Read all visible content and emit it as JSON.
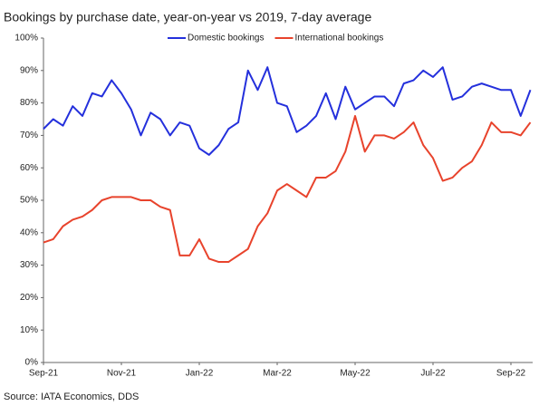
{
  "chart_data": {
    "type": "line",
    "title": "Bookings by purchase date, year-on-year vs 2019, 7-day average",
    "source": "Source: IATA Economics, DDS",
    "categories": [
      "Sep-21",
      null,
      null,
      null,
      null,
      null,
      null,
      null,
      "Nov-21",
      null,
      null,
      null,
      null,
      null,
      null,
      null,
      "Jan-22",
      null,
      null,
      null,
      null,
      null,
      null,
      null,
      "Mar-22",
      null,
      null,
      null,
      null,
      null,
      null,
      null,
      "May-22",
      null,
      null,
      null,
      null,
      null,
      null,
      null,
      "Jul-22",
      null,
      null,
      null,
      null,
      null,
      null,
      null,
      "Sep-22",
      null,
      null
    ],
    "series": [
      {
        "name": "Domestic bookings",
        "color": "#2430dc",
        "values": [
          72,
          75,
          73,
          79,
          76,
          83,
          82,
          87,
          83,
          78,
          70,
          77,
          75,
          70,
          74,
          73,
          66,
          64,
          67,
          72,
          74,
          90,
          84,
          91,
          80,
          79,
          71,
          73,
          76,
          83,
          75,
          85,
          78,
          80,
          82,
          82,
          79,
          86,
          87,
          90,
          88,
          91,
          81,
          82,
          85,
          86,
          85,
          84,
          84,
          76,
          84
        ]
      },
      {
        "name": "International bookings",
        "color": "#e8432c",
        "values": [
          37,
          38,
          42,
          44,
          45,
          47,
          50,
          51,
          51,
          51,
          50,
          50,
          48,
          47,
          33,
          33,
          38,
          32,
          31,
          31,
          33,
          35,
          42,
          46,
          53,
          55,
          53,
          51,
          57,
          57,
          59,
          65,
          76,
          65,
          70,
          70,
          69,
          71,
          74,
          67,
          63,
          56,
          57,
          60,
          62,
          67,
          74,
          71,
          71,
          70,
          74
        ]
      }
    ],
    "ylim": [
      0,
      100
    ],
    "yticks": [
      {
        "value": 0,
        "label": "0%"
      },
      {
        "value": 10,
        "label": "10%"
      },
      {
        "value": 20,
        "label": "20%"
      },
      {
        "value": 30,
        "label": "30%"
      },
      {
        "value": 40,
        "label": "40%"
      },
      {
        "value": 50,
        "label": "50%"
      },
      {
        "value": 60,
        "label": "60%"
      },
      {
        "value": 70,
        "label": "70%"
      },
      {
        "value": 80,
        "label": "80%"
      },
      {
        "value": 90,
        "label": "90%"
      },
      {
        "value": 100,
        "label": "100%"
      }
    ],
    "grid": false,
    "legend": "top"
  }
}
